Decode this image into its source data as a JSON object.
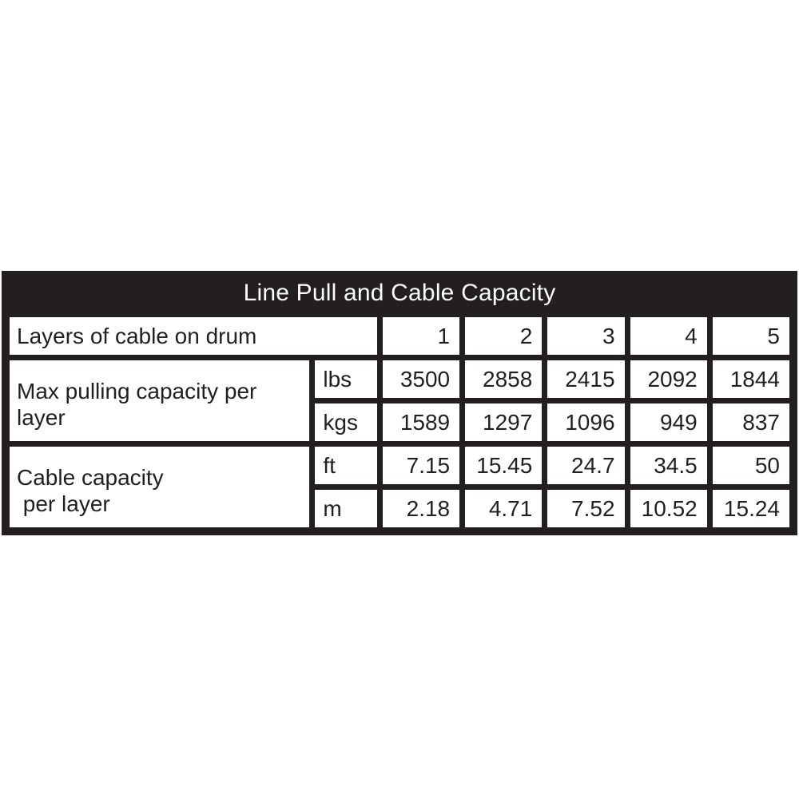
{
  "page": {
    "background": "#ffffff"
  },
  "colors": {
    "frame_and_grid": "#231f20",
    "title_bg": "#231f20",
    "title_text": "#ffffff",
    "cell_bg": "#ffffff",
    "cell_text": "#231f20"
  },
  "chart_data": {
    "type": "table",
    "title": "Line Pull and Cable Capacity",
    "header_row": {
      "label": "Layers of cable on drum",
      "layers": [
        1,
        2,
        3,
        4,
        5
      ]
    },
    "row_groups": [
      {
        "label": "Max pulling capacity per\nlayer",
        "rows": [
          {
            "unit": "lbs",
            "values": [
              3500,
              2858,
              2415,
              2092,
              1844
            ]
          },
          {
            "unit": "kgs",
            "values": [
              1589,
              1297,
              1096,
              949,
              837
            ]
          }
        ]
      },
      {
        "label": "Cable capacity\n per layer",
        "rows": [
          {
            "unit": "ft",
            "values": [
              7.15,
              15.45,
              24.7,
              34.5,
              50
            ]
          },
          {
            "unit": "m",
            "values": [
              2.18,
              4.71,
              7.52,
              10.52,
              15.24
            ]
          }
        ]
      }
    ]
  }
}
